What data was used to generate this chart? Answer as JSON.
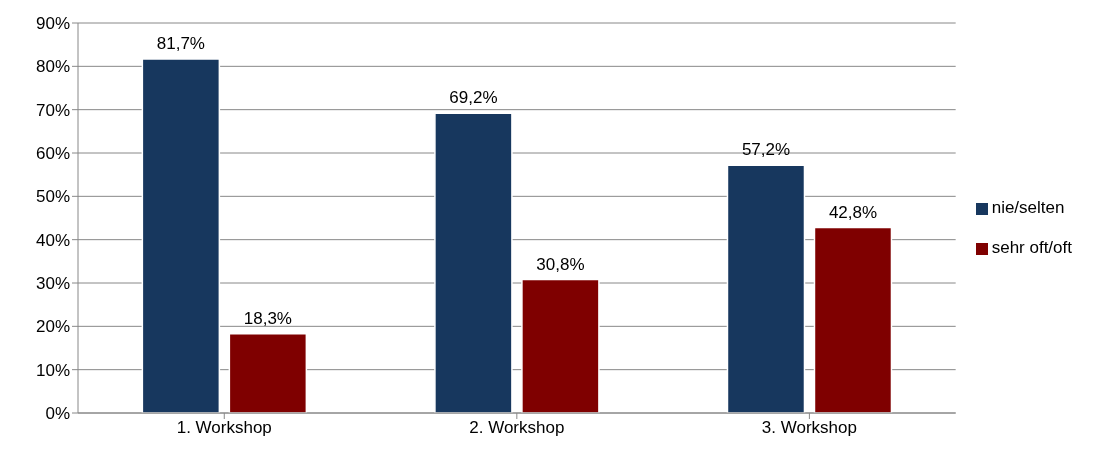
{
  "chart_data": {
    "type": "bar",
    "categories": [
      "1. Workshop",
      "2. Workshop",
      "3. Workshop"
    ],
    "series": [
      {
        "name": "nie/selten",
        "color": "#17375e",
        "values": [
          81.7,
          69.2,
          57.2
        ],
        "value_labels": [
          "81,7%",
          "69,2%",
          "57,2%"
        ]
      },
      {
        "name": "sehr oft/oft",
        "color": "#7f0000",
        "values": [
          18.3,
          30.8,
          42.8
        ],
        "value_labels": [
          "18,3%",
          "30,8%",
          "42,8%"
        ]
      }
    ],
    "ylim": [
      0,
      90
    ],
    "yticks": [
      {
        "value": 0,
        "label": "0%"
      },
      {
        "value": 10,
        "label": "10%"
      },
      {
        "value": 20,
        "label": "20%"
      },
      {
        "value": 30,
        "label": "30%"
      },
      {
        "value": 40,
        "label": "40%"
      },
      {
        "value": 50,
        "label": "50%"
      },
      {
        "value": 60,
        "label": "60%"
      },
      {
        "value": 70,
        "label": "70%"
      },
      {
        "value": 80,
        "label": "80%"
      },
      {
        "value": 90,
        "label": "90%"
      }
    ],
    "grid": "y",
    "legend": "right"
  }
}
